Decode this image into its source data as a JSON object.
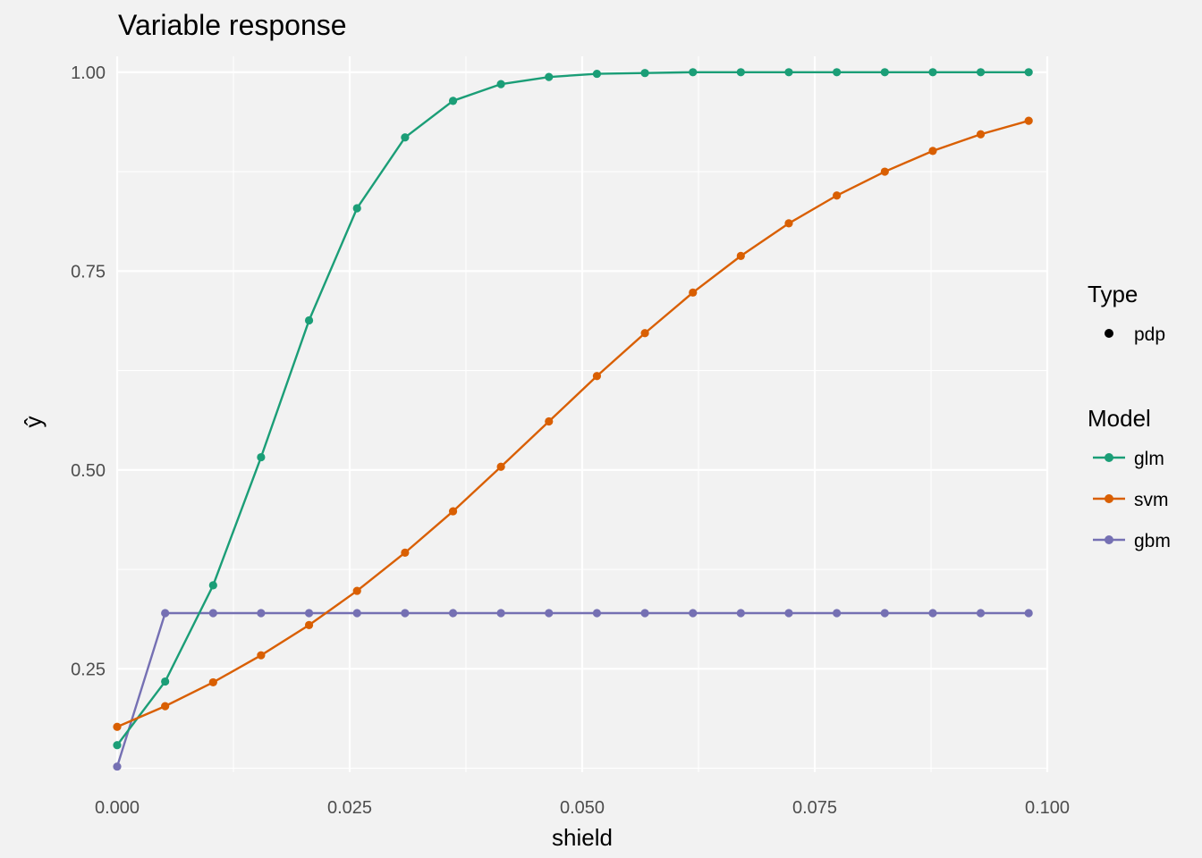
{
  "chart_data": {
    "type": "line",
    "title": "Variable response",
    "xlabel": "shield",
    "ylabel": "ŷ",
    "xlim": [
      0.0,
      0.1
    ],
    "ylim": [
      0.12,
      1.02
    ],
    "x_ticks": [
      "0.000",
      "0.025",
      "0.050",
      "0.075",
      "0.100"
    ],
    "y_ticks": [
      "0.25",
      "0.50",
      "0.75",
      "1.00"
    ],
    "grid": true,
    "legend_position": "right",
    "legend": {
      "type_title": "Type",
      "type_entries": [
        "pdp"
      ],
      "model_title": "Model",
      "model_entries": [
        "glm",
        "svm",
        "gbm"
      ]
    },
    "x": [
      0.0,
      0.00516,
      0.01032,
      0.01547,
      0.02063,
      0.02579,
      0.03095,
      0.03611,
      0.04126,
      0.04642,
      0.05158,
      0.05674,
      0.0619,
      0.06705,
      0.07221,
      0.07737,
      0.08253,
      0.08769,
      0.09284,
      0.098
    ],
    "series": [
      {
        "name": "glm",
        "color": "#1b9e77",
        "values": [
          0.154,
          0.234,
          0.355,
          0.516,
          0.688,
          0.829,
          0.918,
          0.964,
          0.985,
          0.994,
          0.998,
          0.999,
          1.0,
          1.0,
          1.0,
          1.0,
          1.0,
          1.0,
          1.0,
          1.0
        ]
      },
      {
        "name": "svm",
        "color": "#d95f02",
        "values": [
          0.177,
          0.203,
          0.233,
          0.267,
          0.305,
          0.348,
          0.396,
          0.448,
          0.504,
          0.561,
          0.618,
          0.672,
          0.723,
          0.769,
          0.81,
          0.845,
          0.875,
          0.901,
          0.922,
          0.939
        ]
      },
      {
        "name": "gbm",
        "color": "#7570b3",
        "values": [
          0.127,
          0.32,
          0.32,
          0.32,
          0.32,
          0.32,
          0.32,
          0.32,
          0.32,
          0.32,
          0.32,
          0.32,
          0.32,
          0.32,
          0.32,
          0.32,
          0.32,
          0.32,
          0.32,
          0.32
        ]
      }
    ]
  }
}
